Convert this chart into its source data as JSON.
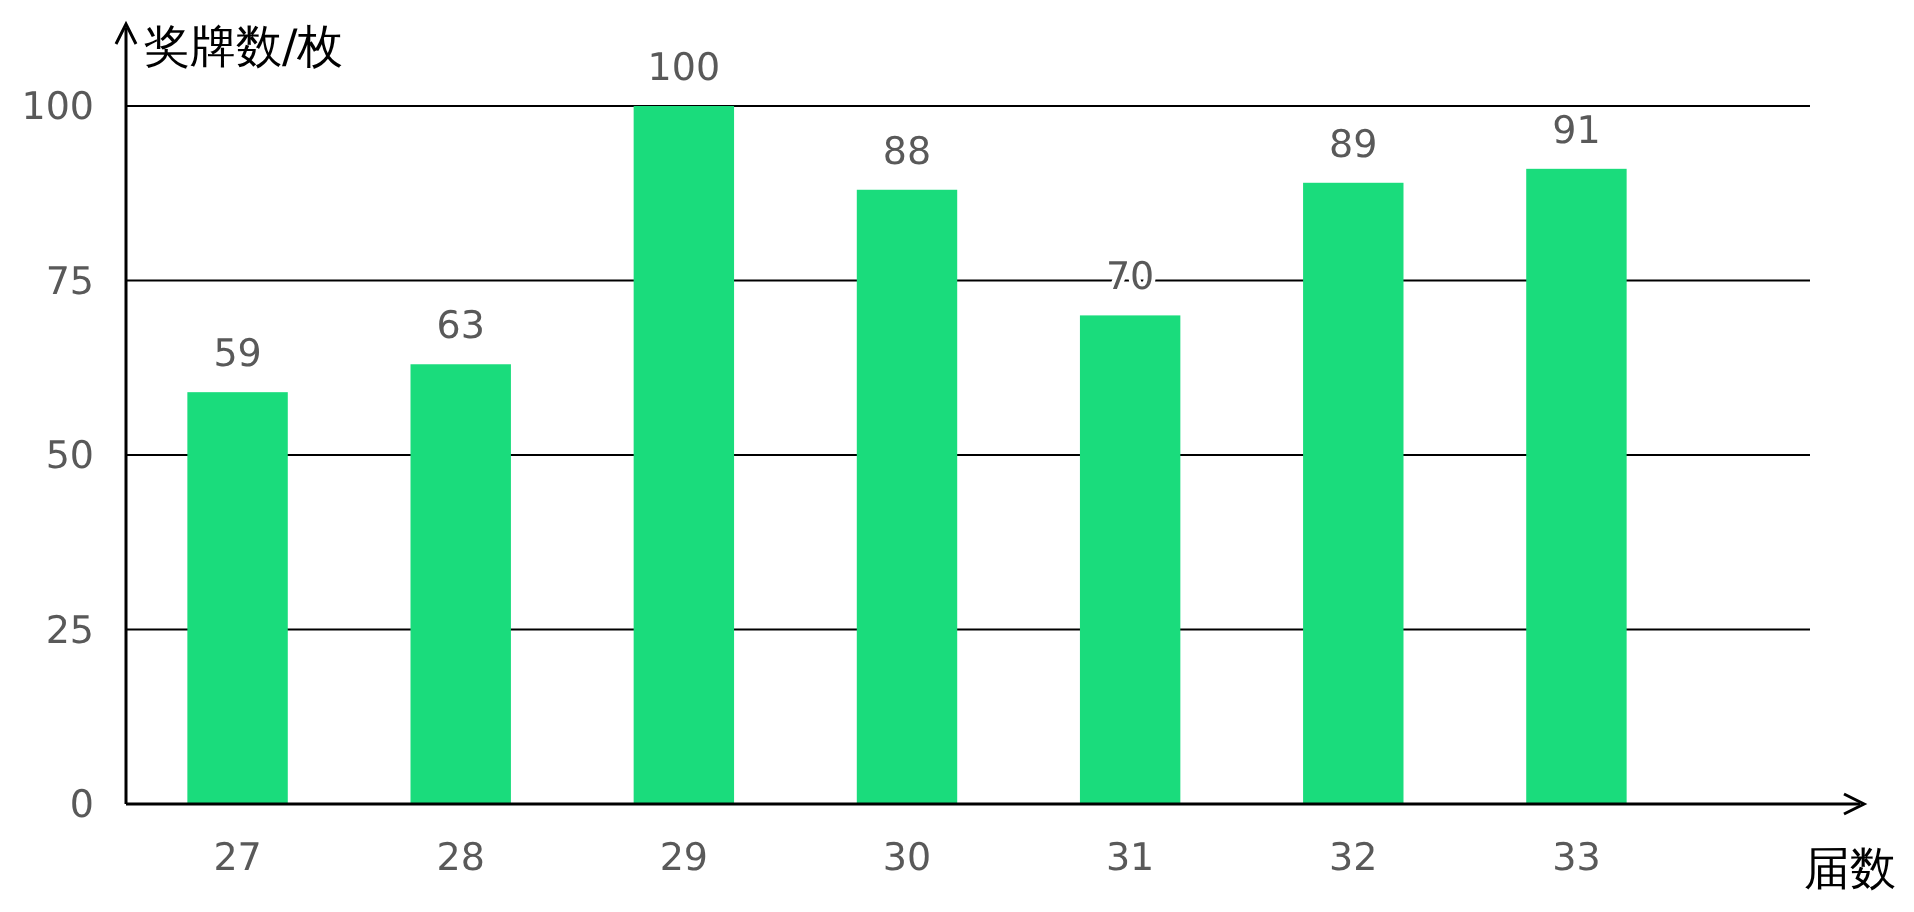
{
  "chart_data": {
    "type": "bar",
    "xlabel": "届数",
    "ylabel": "奖牌数/枚",
    "categories": [
      "27",
      "28",
      "29",
      "30",
      "31",
      "32",
      "33"
    ],
    "values": [
      59,
      63,
      100,
      88,
      70,
      89,
      91
    ],
    "color": "#1adc7c",
    "ylim": [
      0,
      100
    ],
    "yticks": [
      0,
      25,
      50,
      75,
      100
    ],
    "grid": "y",
    "data_labels": true
  }
}
